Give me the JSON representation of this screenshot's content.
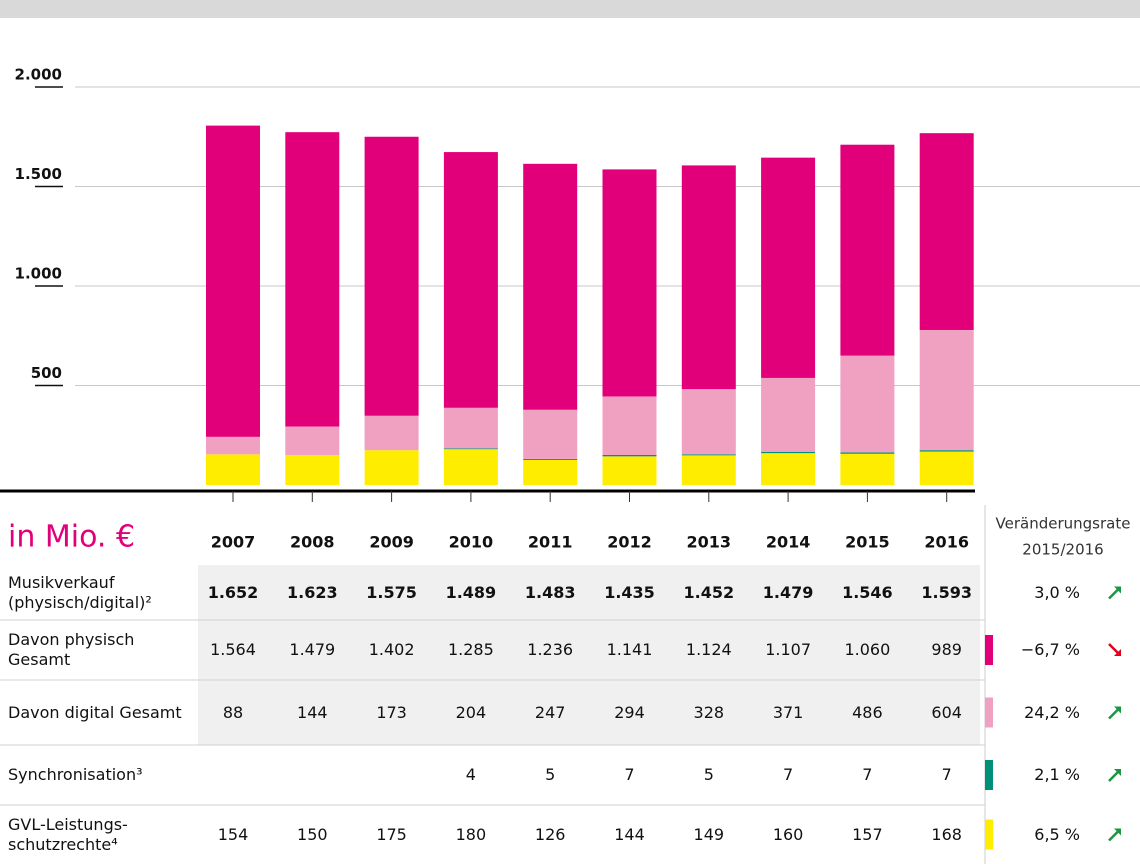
{
  "chart_data": {
    "type": "stacked_bar",
    "categories": [
      "2007",
      "2008",
      "2009",
      "2010",
      "2011",
      "2012",
      "2013",
      "2014",
      "2015",
      "2016"
    ],
    "ylim": [
      0,
      2000
    ],
    "yticks": [
      {
        "value": 500,
        "label": "500"
      },
      {
        "value": 1000,
        "label": "1.000"
      },
      {
        "value": 1500,
        "label": "1.500"
      },
      {
        "value": 2000,
        "label": "2.000"
      }
    ],
    "grid": true,
    "series": [
      {
        "name": "GVL-Leistungs-schutzrechte⁴",
        "color": "#ffed00",
        "values": [
          154,
          150,
          175,
          180,
          126,
          144,
          149,
          160,
          157,
          168
        ],
        "value_labels": [
          "154",
          "150",
          "175",
          "180",
          "126",
          "144",
          "149",
          "160",
          "157",
          "168"
        ],
        "change": 6.5,
        "change_label": "6,5 %"
      },
      {
        "name": "Synchronisation³",
        "color": "#00907a",
        "values": [
          null,
          null,
          null,
          4,
          5,
          7,
          5,
          7,
          7,
          7
        ],
        "value_labels": [
          null,
          null,
          null,
          "4",
          "5",
          "7",
          "5",
          "7",
          "7",
          "7"
        ],
        "change": 2.1,
        "change_label": "2,1 %"
      },
      {
        "name": "Davon digital Gesamt",
        "color": "#f0a0c0",
        "values": [
          88,
          144,
          173,
          204,
          247,
          294,
          328,
          371,
          486,
          604
        ],
        "value_labels": [
          "88",
          "144",
          "173",
          "204",
          "247",
          "294",
          "328",
          "371",
          "486",
          "604"
        ],
        "change": 24.2,
        "change_label": "24,2 %"
      },
      {
        "name": "Davon physisch Gesamt",
        "color": "#e2007a",
        "values": [
          1564,
          1479,
          1402,
          1285,
          1236,
          1141,
          1124,
          1107,
          1060,
          989
        ],
        "value_labels": [
          "1.564",
          "1.479",
          "1.402",
          "1.285",
          "1.236",
          "1.141",
          "1.124",
          "1.107",
          "1.060",
          "989"
        ],
        "change": -6.7,
        "change_label": "−6,7 %"
      }
    ]
  },
  "table": {
    "unit_label": "in Mio. €",
    "change_header": [
      "Veränderungsrate",
      "2015/2016"
    ],
    "total": {
      "label": "Musikverkauf (physisch/digital)²",
      "value_labels": [
        "1.652",
        "1.623",
        "1.575",
        "1.489",
        "1.483",
        "1.435",
        "1.452",
        "1.479",
        "1.546",
        "1.593"
      ],
      "change": 3.0,
      "change_label": "3,0 %"
    }
  }
}
